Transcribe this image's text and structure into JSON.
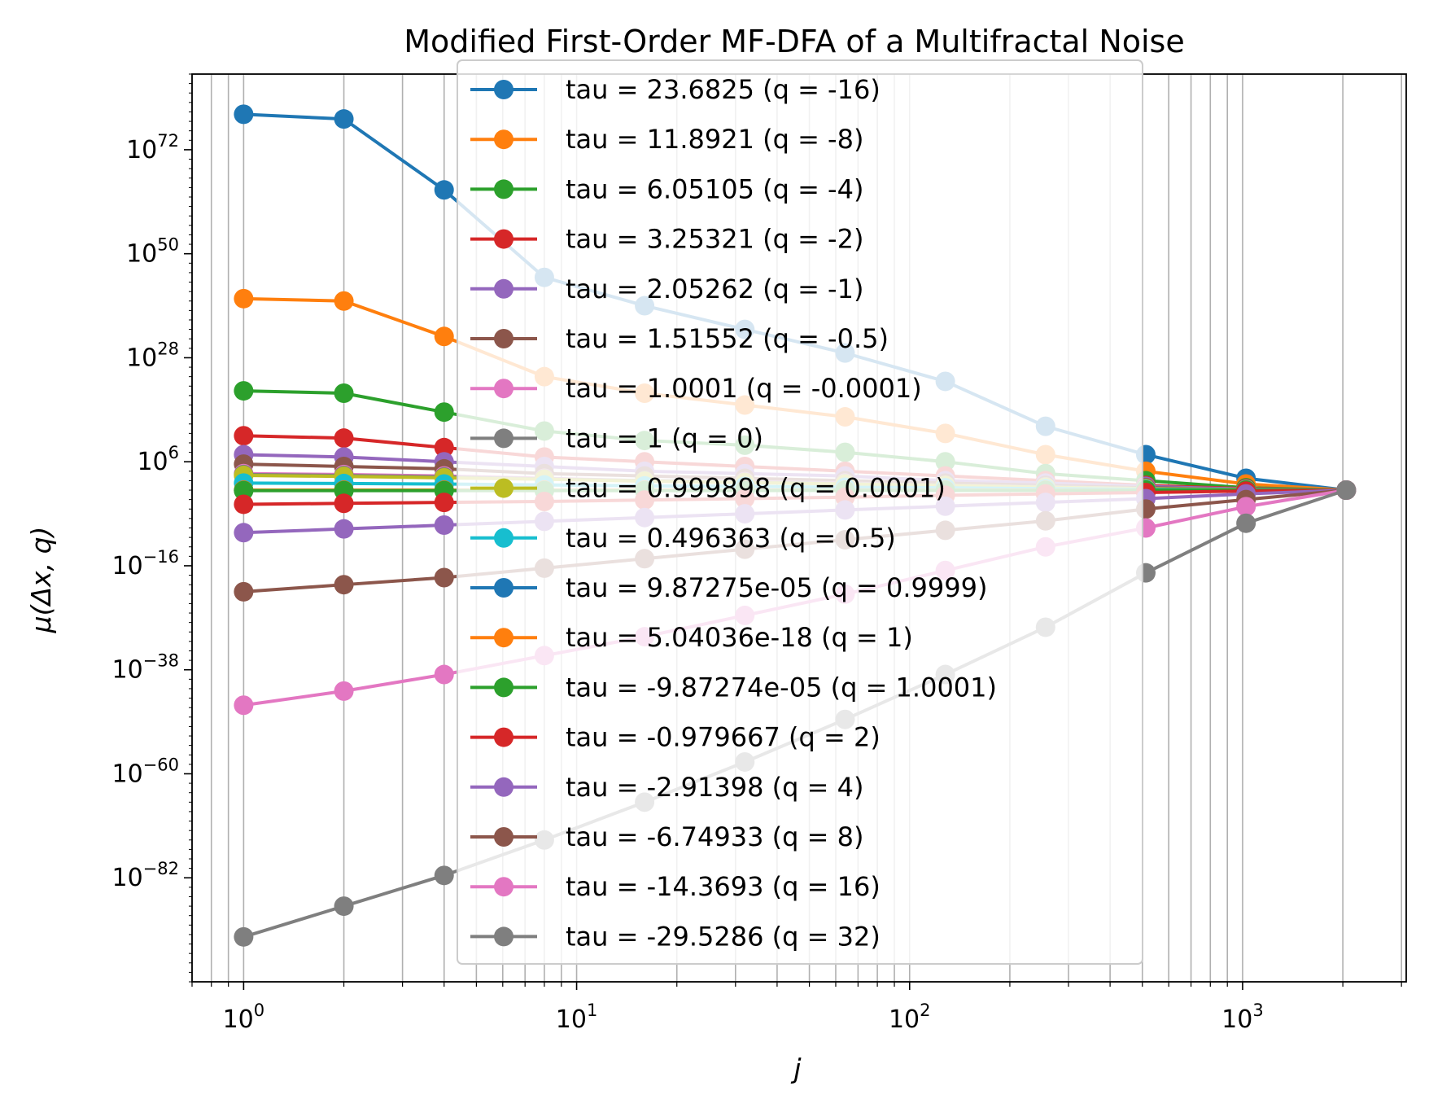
{
  "chart_data": {
    "type": "line",
    "title": "Modified First-Order MF-DFA of a Multifractal Noise",
    "xlabel": "j",
    "ylabel": "μ(Δx, q)",
    "xscale": "log",
    "yscale": "log",
    "xlim": [
      0.7,
      3100
    ],
    "ylim_log10": [
      -104,
      88
    ],
    "grid": "vertical gridlines at major and minor x ticks",
    "legend_position": "upper center",
    "x": [
      1,
      2,
      4,
      8,
      16,
      32,
      64,
      128,
      256,
      512,
      1024,
      2048
    ],
    "x_tick_labels": [
      {
        "value": 1,
        "base": "10",
        "exp": "0"
      },
      {
        "value": 10,
        "base": "10",
        "exp": "1"
      },
      {
        "value": 100,
        "base": "10",
        "exp": "2"
      },
      {
        "value": 1000,
        "base": "10",
        "exp": "3"
      }
    ],
    "y_tick_labels": [
      {
        "log10": 72,
        "base": "10",
        "exp": "72"
      },
      {
        "log10": 50,
        "base": "10",
        "exp": "50"
      },
      {
        "log10": 28,
        "base": "10",
        "exp": "28"
      },
      {
        "log10": 6,
        "base": "10",
        "exp": "6"
      },
      {
        "log10": -16,
        "base": "10",
        "exp": "−16"
      },
      {
        "log10": -38,
        "base": "10",
        "exp": "−38"
      },
      {
        "log10": -60,
        "base": "10",
        "exp": "−60"
      },
      {
        "log10": -82,
        "base": "10",
        "exp": "−82"
      }
    ],
    "series_note": "values given as log10 of mu at each j",
    "series": [
      {
        "name": "tau = 23.6825 (q = -16)",
        "color": "#1f77b4",
        "log10_values": [
          79.5,
          78.5,
          63.5,
          45,
          39,
          34,
          29,
          23,
          13.5,
          7.5,
          2.5,
          0
        ]
      },
      {
        "name": "tau = 11.8921 (q = -8)",
        "color": "#ff7f0e",
        "log10_values": [
          40.5,
          40,
          32.5,
          24,
          20.5,
          18,
          15.5,
          12,
          7.5,
          4,
          1.3,
          0
        ]
      },
      {
        "name": "tau = 6.05105 (q = -4)",
        "color": "#2ca02c",
        "log10_values": [
          21,
          20.5,
          16.5,
          12.5,
          10.5,
          9.5,
          8,
          6,
          3.5,
          2,
          0.5,
          0
        ]
      },
      {
        "name": "tau = 3.25321 (q = -2)",
        "color": "#d62728",
        "log10_values": [
          11.5,
          11,
          9,
          7,
          6,
          5,
          4,
          3,
          2,
          1,
          0.3,
          0
        ]
      },
      {
        "name": "tau = 2.05262 (q = -1)",
        "color": "#9467bd",
        "log10_values": [
          7.5,
          7,
          6,
          5,
          4,
          3.5,
          3,
          2,
          1.5,
          0.8,
          0.2,
          0
        ]
      },
      {
        "name": "tau = 1.51552 (q = -0.5)",
        "color": "#8c564b",
        "log10_values": [
          5.5,
          5,
          4.5,
          3.5,
          3,
          2.5,
          2,
          1.5,
          1,
          0.5,
          0.1,
          0
        ]
      },
      {
        "name": "tau = 1.0001 (q = -0.0001)",
        "color": "#e377c2",
        "log10_values": [
          3.5,
          3.3,
          3,
          2.5,
          2,
          1.8,
          1.5,
          1,
          0.7,
          0.3,
          0.1,
          0
        ]
      },
      {
        "name": "tau = 1 (q = 0)",
        "color": "#7f7f7f",
        "log10_values": [
          3.3,
          3.1,
          2.8,
          2.4,
          2,
          1.7,
          1.4,
          1,
          0.7,
          0.3,
          0.1,
          0
        ]
      },
      {
        "name": "tau = 0.999898 (q = 0.0001)",
        "color": "#bcbd22",
        "log10_values": [
          3.1,
          2.9,
          2.6,
          2.3,
          1.9,
          1.6,
          1.3,
          1,
          0.6,
          0.3,
          0.1,
          0
        ]
      },
      {
        "name": "tau = 0.496363 (q = 0.5)",
        "color": "#17becf",
        "log10_values": [
          1.5,
          1.4,
          1.3,
          1.1,
          0.9,
          0.8,
          0.6,
          0.5,
          0.3,
          0.15,
          0.05,
          0
        ]
      },
      {
        "name": "tau = 9.87275e-05 (q = 0.9999)",
        "color": "#1f77b4",
        "log10_values": [
          0,
          0,
          0,
          0,
          0,
          0,
          0,
          0,
          0,
          0,
          0,
          0
        ]
      },
      {
        "name": "tau = 5.04036e-18 (q = 1)",
        "color": "#ff7f0e",
        "log10_values": [
          0,
          0,
          0,
          0,
          0,
          0,
          0,
          0,
          0,
          0,
          0,
          0
        ]
      },
      {
        "name": "tau = -9.87274e-05 (q = 1.0001)",
        "color": "#2ca02c",
        "log10_values": [
          -0.1,
          -0.1,
          -0.1,
          -0.1,
          -0.1,
          -0.1,
          -0.05,
          -0.05,
          -0.05,
          0,
          0,
          0
        ]
      },
      {
        "name": "tau = -0.979667 (q = 2)",
        "color": "#d62728",
        "log10_values": [
          -3,
          -2.8,
          -2.6,
          -2.4,
          -2.1,
          -1.8,
          -1.5,
          -1.1,
          -0.8,
          -0.5,
          -0.2,
          0
        ]
      },
      {
        "name": "tau = -2.91398 (q = 4)",
        "color": "#9467bd",
        "log10_values": [
          -9,
          -8.2,
          -7.4,
          -6.6,
          -5.8,
          -5,
          -4.2,
          -3.4,
          -2.6,
          -1.8,
          -0.8,
          0
        ]
      },
      {
        "name": "tau = -6.74933 (q = 8)",
        "color": "#8c564b",
        "log10_values": [
          -21.5,
          -20,
          -18.5,
          -16.5,
          -14.5,
          -12.5,
          -10.5,
          -8.5,
          -6.5,
          -4,
          -2,
          0
        ]
      },
      {
        "name": "tau = -14.3693 (q = 16)",
        "color": "#e377c2",
        "log10_values": [
          -45.5,
          -42.5,
          -39,
          -35,
          -31,
          -26.5,
          -22,
          -17,
          -12,
          -8,
          -3.5,
          0
        ]
      },
      {
        "name": "tau = -29.5286 (q = 32)",
        "color": "#7f7f7f",
        "log10_values": [
          -94.5,
          -88,
          -81.5,
          -74,
          -66,
          -57.5,
          -48.5,
          -39,
          -29,
          -17.5,
          -7,
          0
        ]
      }
    ]
  }
}
